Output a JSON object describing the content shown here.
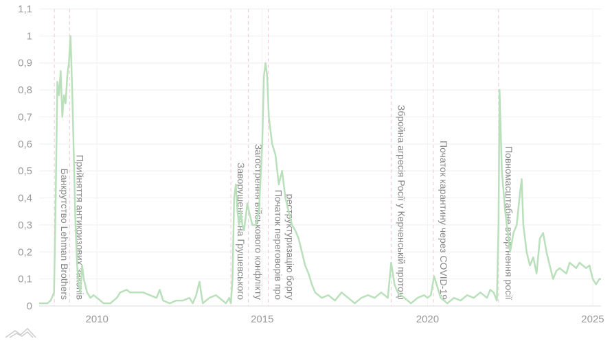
{
  "chart_data": {
    "type": "line",
    "x": [
      2008.25,
      2008.5,
      2008.6,
      2008.7,
      2008.75,
      2008.8,
      2008.85,
      2008.9,
      2008.95,
      2009.0,
      2009.05,
      2009.1,
      2009.15,
      2009.2,
      2009.25,
      2009.3,
      2009.35,
      2009.4,
      2009.45,
      2009.5,
      2009.55,
      2009.6,
      2009.7,
      2009.8,
      2009.9,
      2010.0,
      2010.1,
      2010.2,
      2010.4,
      2010.6,
      2010.7,
      2010.9,
      2011.0,
      2011.2,
      2011.4,
      2011.6,
      2011.8,
      2011.9,
      2012.0,
      2012.2,
      2012.4,
      2012.6,
      2012.8,
      2012.9,
      2013.0,
      2013.1,
      2013.2,
      2013.4,
      2013.6,
      2013.8,
      2013.9,
      2014.0,
      2014.05,
      2014.1,
      2014.15,
      2014.2,
      2014.25,
      2014.3,
      2014.35,
      2014.4,
      2014.45,
      2014.5,
      2014.55,
      2014.6,
      2014.7,
      2014.8,
      2014.9,
      2015.0,
      2015.05,
      2015.1,
      2015.15,
      2015.2,
      2015.3,
      2015.4,
      2015.5,
      2015.6,
      2015.7,
      2015.8,
      2015.9,
      2016.0,
      2016.1,
      2016.2,
      2016.3,
      2016.4,
      2016.5,
      2016.6,
      2016.8,
      2017.0,
      2017.2,
      2017.4,
      2017.6,
      2017.8,
      2018.0,
      2018.2,
      2018.4,
      2018.6,
      2018.8,
      2018.9,
      2019.0,
      2019.1,
      2019.3,
      2019.5,
      2019.7,
      2019.9,
      2020.0,
      2020.1,
      2020.2,
      2020.3,
      2020.4,
      2020.6,
      2020.8,
      2021.0,
      2021.2,
      2021.4,
      2021.6,
      2021.8,
      2021.9,
      2022.0,
      2022.1,
      2022.15,
      2022.18,
      2022.25,
      2022.35,
      2022.45,
      2022.5,
      2022.6,
      2022.7,
      2022.8,
      2022.85,
      2022.9,
      2023.0,
      2023.1,
      2023.2,
      2023.3,
      2023.4,
      2023.5,
      2023.6,
      2023.7,
      2023.8,
      2023.9,
      2024.0,
      2024.2,
      2024.3,
      2024.5,
      2024.6,
      2024.8,
      2024.9,
      2025.0,
      2025.1,
      2025.2,
      2025.25
    ],
    "values": [
      0.01,
      0.01,
      0.02,
      0.05,
      0.4,
      0.83,
      0.78,
      0.87,
      0.7,
      0.78,
      0.75,
      0.85,
      0.9,
      1.0,
      0.8,
      0.55,
      0.3,
      0.15,
      0.08,
      0.05,
      0.15,
      0.1,
      0.05,
      0.03,
      0.04,
      0.03,
      0.02,
      0.01,
      0.01,
      0.03,
      0.05,
      0.06,
      0.05,
      0.05,
      0.05,
      0.04,
      0.03,
      0.06,
      0.02,
      0.01,
      0.02,
      0.02,
      0.03,
      0.01,
      0.04,
      0.09,
      0.01,
      0.03,
      0.04,
      0.02,
      0.01,
      0.03,
      0.01,
      0.1,
      0.4,
      0.45,
      0.35,
      0.3,
      0.35,
      0.3,
      0.28,
      0.33,
      0.38,
      0.35,
      0.3,
      0.3,
      0.35,
      0.6,
      0.85,
      0.9,
      0.85,
      0.7,
      0.6,
      0.56,
      0.45,
      0.5,
      0.4,
      0.35,
      0.3,
      0.28,
      0.25,
      0.2,
      0.15,
      0.12,
      0.08,
      0.05,
      0.03,
      0.04,
      0.02,
      0.05,
      0.03,
      0.01,
      0.03,
      0.04,
      0.03,
      0.05,
      0.03,
      0.16,
      0.08,
      0.05,
      0.03,
      0.01,
      0.03,
      0.04,
      0.03,
      0.04,
      0.11,
      0.07,
      0.03,
      0.01,
      0.03,
      0.02,
      0.04,
      0.03,
      0.05,
      0.03,
      0.06,
      0.05,
      0.02,
      0.3,
      0.8,
      0.5,
      0.35,
      0.25,
      0.2,
      0.27,
      0.3,
      0.42,
      0.47,
      0.3,
      0.2,
      0.15,
      0.18,
      0.12,
      0.25,
      0.27,
      0.2,
      0.15,
      0.1,
      0.13,
      0.14,
      0.12,
      0.16,
      0.14,
      0.16,
      0.14,
      0.15,
      0.1,
      0.08,
      0.1,
      0.1
    ],
    "color": "#b9e0bb",
    "event_color": "#f5c6d4",
    "events": [
      {
        "x": 2008.71,
        "label": "Банкрутство Lehman Brothers"
      },
      {
        "x": 2009.17,
        "label": "Прийняття антикризових законів"
      },
      {
        "x": 2014.05,
        "label": "Заворушення на Грушевського"
      },
      {
        "x": 2014.58,
        "label": "Загострення військового конфлікту"
      },
      {
        "x": 2015.18,
        "label": [
          "Початок переговорів про",
          "реструктуризацію боргу"
        ]
      },
      {
        "x": 2018.9,
        "label": "Збройна агресія Росії у Керченській протоці"
      },
      {
        "x": 2020.18,
        "label": "Початок карантину через COVID-19"
      },
      {
        "x": 2022.15,
        "label": "Повномасштабне вторгнення росії"
      }
    ],
    "xlim": [
      2008.25,
      2025.25
    ],
    "xticks": [
      2010,
      2015,
      2020,
      2025
    ],
    "ylim": [
      0,
      1.1
    ],
    "yticks": [
      0,
      {
        "value": 0.1,
        "label": "0,1"
      },
      {
        "value": 0.2,
        "label": "0,2"
      },
      {
        "value": 0.3,
        "label": "0,3"
      },
      {
        "value": 0.4,
        "label": "0,4"
      },
      {
        "value": 0.5,
        "label": "0,5"
      },
      {
        "value": 0.6,
        "label": "0,6"
      },
      {
        "value": 0.7,
        "label": "0,7"
      },
      {
        "value": 0.8,
        "label": "0,8"
      },
      {
        "value": 0.9,
        "label": "0,9"
      },
      1,
      {
        "value": 1.1,
        "label": "1,1"
      }
    ],
    "grid": true
  }
}
